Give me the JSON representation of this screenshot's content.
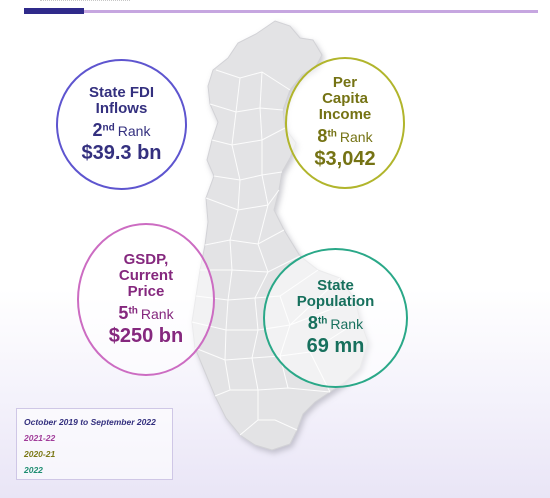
{
  "colors": {
    "fdi": "#5e55cf",
    "per_capita": "#b1b52c",
    "gsdp": "#cc6cc2",
    "population": "#2aa888",
    "legend_title": "#34307f",
    "map_fill": "#e3e3e5",
    "map_line": "#ffffff"
  },
  "bubbles": {
    "fdi": {
      "title": "State FDI\nInflows",
      "rank_num": "2",
      "rank_sup": "nd",
      "rank_word": "Rank",
      "value": "$39.3 bn"
    },
    "per_capita": {
      "title": "Per\nCapita\nIncome",
      "rank_num": "8",
      "rank_sup": "th",
      "rank_word": "Rank",
      "value": "$3,042"
    },
    "gsdp": {
      "title": "GSDP,\nCurrent\nPrice",
      "rank_num": "5",
      "rank_sup": "th",
      "rank_word": "Rank",
      "value": "$250 bn"
    },
    "population": {
      "title": "State\nPopulation",
      "rank_num": "8",
      "rank_sup": "th",
      "rank_word": "Rank",
      "value": "69 mn"
    }
  },
  "legend": {
    "rows": [
      {
        "text": "October 2019 to September 2022",
        "color": "#34307f"
      },
      {
        "text": "2021-22",
        "color": "#a13c9a"
      },
      {
        "text": "2020-21",
        "color": "#7b7816"
      },
      {
        "text": "2022",
        "color": "#1f8e72"
      }
    ]
  }
}
